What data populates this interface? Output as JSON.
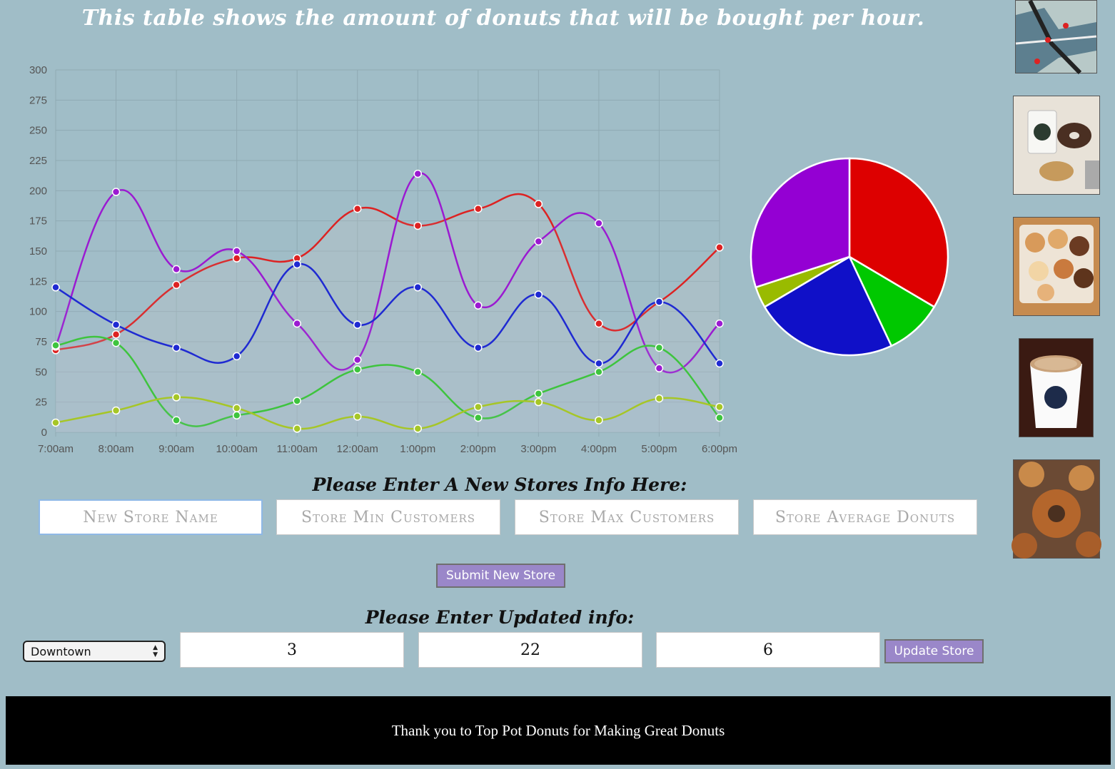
{
  "header": {
    "title": "This table shows the amount of donuts that will be bought per hour."
  },
  "chart_data": [
    {
      "type": "line",
      "categories": [
        "7:00am",
        "8:00am",
        "9:00am",
        "10:00am",
        "11:00am",
        "12:00am",
        "1:00pm",
        "2:00pm",
        "3:00pm",
        "4:00pm",
        "5:00pm",
        "6:00pm"
      ],
      "ylim": [
        0,
        300
      ],
      "yticks": [
        0,
        25,
        50,
        75,
        100,
        125,
        150,
        175,
        200,
        225,
        250,
        275,
        300
      ],
      "grid": true,
      "series": [
        {
          "color": "#dd2222",
          "fill": true,
          "values": [
            68,
            81,
            122,
            144,
            144,
            185,
            171,
            185,
            189,
            90,
            108,
            153
          ]
        },
        {
          "color": "#9b1ad1",
          "fill": false,
          "values": [
            71,
            199,
            135,
            150,
            90,
            60,
            214,
            105,
            158,
            173,
            53,
            90
          ]
        },
        {
          "color": "#1f2ad2",
          "fill": false,
          "values": [
            120,
            89,
            70,
            63,
            139,
            89,
            120,
            70,
            114,
            57,
            108,
            57
          ]
        },
        {
          "color": "#3ec43e",
          "fill": false,
          "values": [
            72,
            74,
            10,
            14,
            26,
            52,
            50,
            12,
            32,
            50,
            70,
            12
          ]
        },
        {
          "color": "#a6c627",
          "fill": false,
          "values": [
            8,
            18,
            29,
            20,
            3,
            13,
            3,
            21,
            25,
            10,
            28,
            21
          ]
        }
      ]
    },
    {
      "type": "pie",
      "slices": [
        {
          "value": 33.5,
          "color": "#dd0000"
        },
        {
          "value": 9.5,
          "color": "#00c800"
        },
        {
          "value": 23.5,
          "color": "#1010c8"
        },
        {
          "value": 3.5,
          "color": "#99bb00"
        },
        {
          "value": 30.0,
          "color": "#9400d3"
        }
      ]
    }
  ],
  "sidebar": {
    "images": [
      "seattle-map-image",
      "coffee-and-donuts-image",
      "donut-tray-image",
      "top-pot-coffee-cup-image",
      "glazed-donuts-image"
    ]
  },
  "new_store_form": {
    "title": "Please Enter A New Stores Info Here:",
    "name_placeholder": "New Store Name",
    "min_placeholder": "Store Min Customers",
    "max_placeholder": "Store Max Customers",
    "avg_placeholder": "Store Average Donuts",
    "submit_label": "Submit New Store"
  },
  "update_form": {
    "title": "Please Enter Updated info:",
    "store_selected": "Downtown",
    "min_value": "3",
    "max_value": "22",
    "avg_value": "6",
    "update_label": "Update Store"
  },
  "footer": {
    "text": "Thank you to Top Pot Donuts for Making Great Donuts"
  }
}
